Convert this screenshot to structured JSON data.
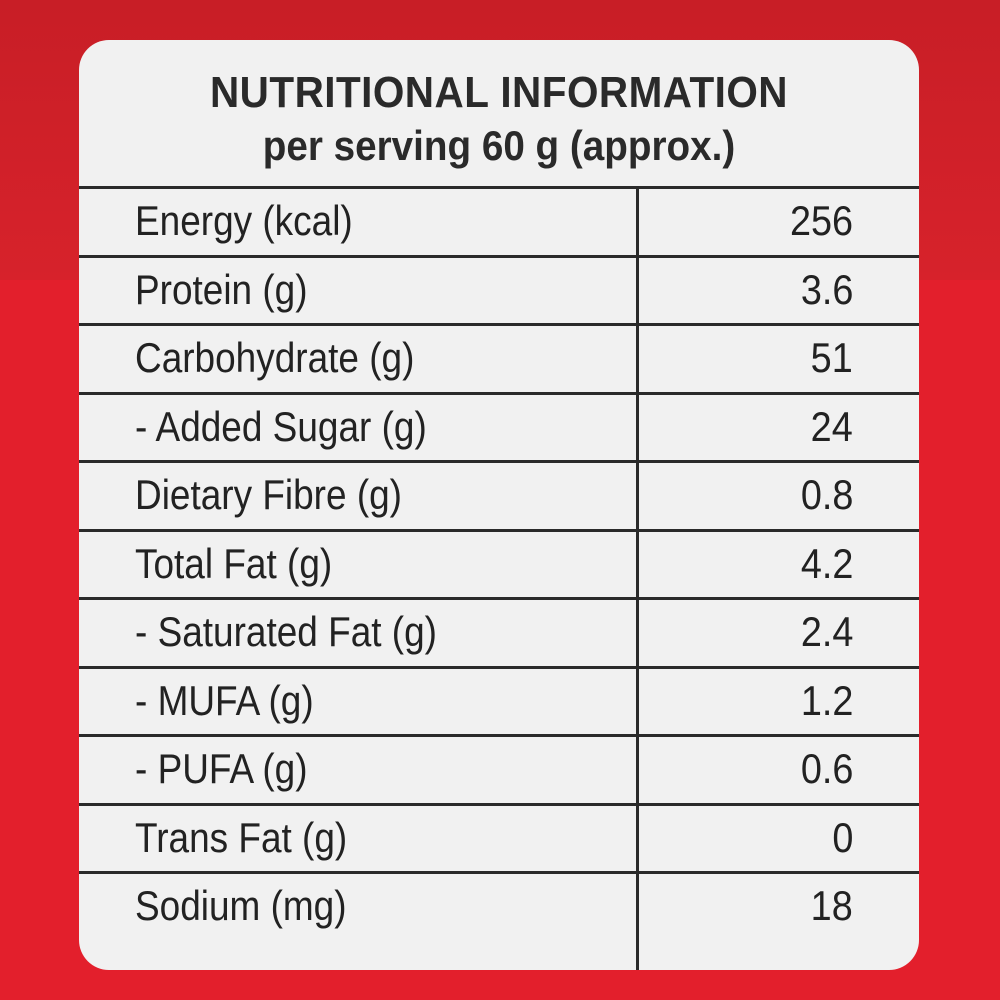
{
  "panel": {
    "title": "NUTRITIONAL INFORMATION",
    "subtitle": "per serving 60 g (approx.)"
  },
  "nutrients": [
    {
      "label": "Energy (kcal)",
      "value": "256"
    },
    {
      "label": "Protein (g)",
      "value": "3.6"
    },
    {
      "label": "Carbohydrate (g)",
      "value": "51"
    },
    {
      "label": "- Added Sugar (g)",
      "value": "24"
    },
    {
      "label": "Dietary Fibre (g)",
      "value": "0.8"
    },
    {
      "label": "Total Fat (g)",
      "value": "4.2"
    },
    {
      "label": "- Saturated Fat (g)",
      "value": "2.4"
    },
    {
      "label": "- MUFA (g)",
      "value": "1.2"
    },
    {
      "label": "- PUFA (g)",
      "value": "0.6"
    },
    {
      "label": "Trans Fat (g)",
      "value": "0"
    },
    {
      "label": "Sodium (mg)",
      "value": "18"
    }
  ],
  "colors": {
    "background": "#d9232d",
    "panel": "#f1f1f1",
    "text": "#222222"
  }
}
